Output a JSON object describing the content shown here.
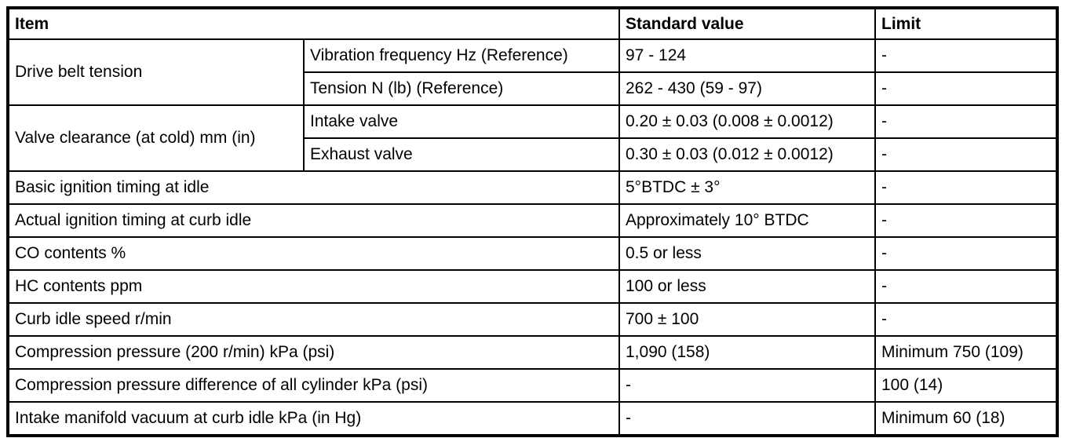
{
  "page": {
    "background_color": "#ffffff",
    "border_color": "#000000",
    "text_color": "#000000"
  },
  "table": {
    "headers": {
      "item": "Item",
      "standard_value": "Standard value",
      "limit": "Limit"
    },
    "rows": [
      {
        "item": "Drive belt tension",
        "sub_item": "Vibration frequency Hz (Reference)",
        "standard_value": "97 - 124",
        "limit": "-"
      },
      {
        "sub_item": "Tension N (lb) (Reference)",
        "standard_value": "262 - 430 (59 - 97)",
        "limit": "-"
      },
      {
        "item": "Valve clearance (at cold) mm (in)",
        "sub_item": "Intake valve",
        "standard_value": "0.20 ± 0.03 (0.008 ± 0.0012)",
        "limit": "-"
      },
      {
        "sub_item": "Exhaust valve",
        "standard_value": "0.30 ± 0.03 (0.012 ± 0.0012)",
        "limit": "-"
      },
      {
        "item": "Basic ignition timing at idle",
        "standard_value": "5°BTDC ± 3°",
        "limit": "-"
      },
      {
        "item": "Actual ignition timing at curb idle",
        "standard_value": "Approximately 10° BTDC",
        "limit": "-"
      },
      {
        "item": "CO contents %",
        "standard_value": "0.5 or less",
        "limit": "-"
      },
      {
        "item": "HC contents ppm",
        "standard_value": "100 or less",
        "limit": "-"
      },
      {
        "item": "Curb idle speed r/min",
        "standard_value": "700 ± 100",
        "limit": "-"
      },
      {
        "item": "Compression pressure (200 r/min) kPa (psi)",
        "standard_value": "1,090 (158)",
        "limit": "Minimum 750 (109)"
      },
      {
        "item": "Compression pressure difference of all cylinder kPa (psi)",
        "standard_value": "-",
        "limit": "100 (14)"
      },
      {
        "item": "Intake manifold vacuum at curb idle kPa (in Hg)",
        "standard_value": "-",
        "limit": "Minimum 60 (18)"
      }
    ]
  }
}
